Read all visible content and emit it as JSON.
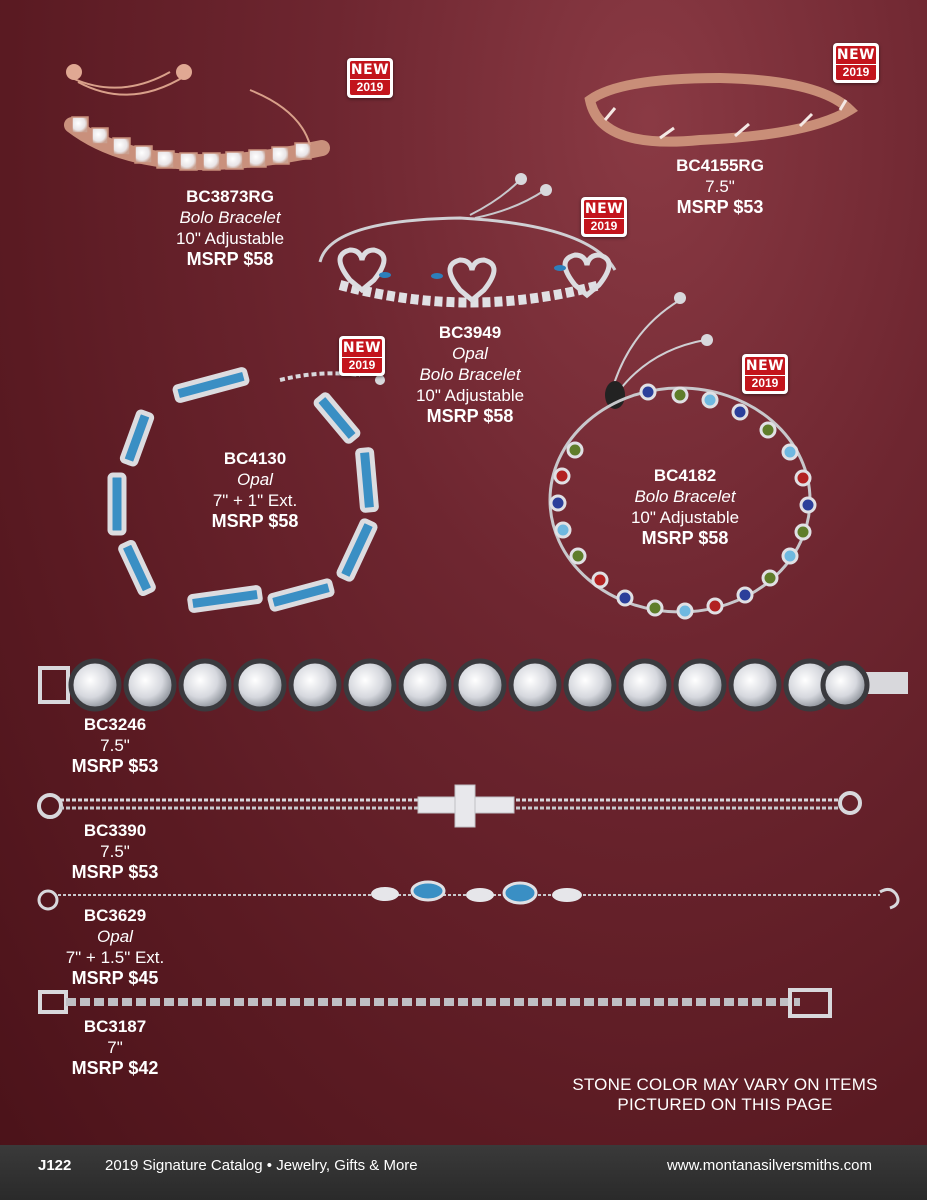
{
  "badge": {
    "top": "NEW",
    "bottom": "2019"
  },
  "products": [
    {
      "sku": "BC3873RG",
      "style": "Bolo Bracelet",
      "size": "10\" Adjustable",
      "price": "MSRP $58"
    },
    {
      "sku": "BC4155RG",
      "size": "7.5\"",
      "price": "MSRP $53"
    },
    {
      "sku": "BC3949",
      "style": "Opal",
      "style2": "Bolo Bracelet",
      "size": "10\" Adjustable",
      "price": "MSRP $58"
    },
    {
      "sku": "BC4130",
      "style": "Opal",
      "size": "7\" + 1\" Ext.",
      "price": "MSRP $58"
    },
    {
      "sku": "BC4182",
      "style": "Bolo Bracelet",
      "size": "10\" Adjustable",
      "price": "MSRP $58"
    },
    {
      "sku": "BC3246",
      "size": "7.5\"",
      "price": "MSRP $53"
    },
    {
      "sku": "BC3390",
      "size": "7.5\"",
      "price": "MSRP $53"
    },
    {
      "sku": "BC3629",
      "style": "Opal",
      "size": "7\" + 1.5\" Ext.",
      "price": "MSRP $45"
    },
    {
      "sku": "BC3187",
      "size": "7\"",
      "price": "MSRP $42"
    }
  ],
  "note": {
    "line1": "STONE COLOR MAY VARY ON ITEMS",
    "line2": "PICTURED ON THIS PAGE"
  },
  "footer": {
    "page": "J122",
    "catalog": "2019 Signature Catalog • Jewelry, Gifts & More",
    "url": "www.montanasilversmiths.com"
  },
  "colors": {
    "background": "#6e2630",
    "badge_red": "#c3141c",
    "rose_gold": "#d9a08a",
    "silver": "#d8d8dc",
    "opal": "#3a8fc4",
    "footer": "#333333"
  }
}
